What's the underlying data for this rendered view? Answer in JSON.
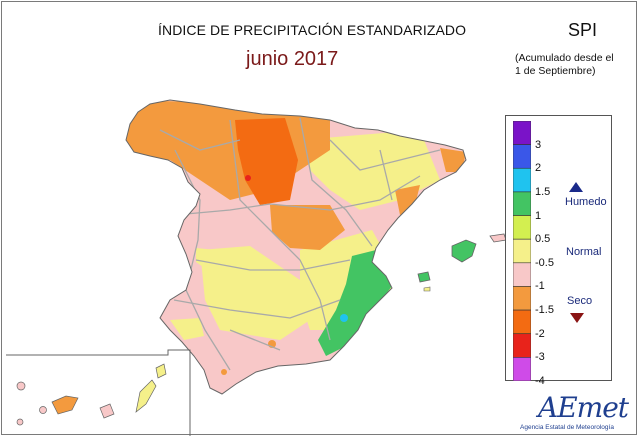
{
  "title": "ÍNDICE DE PRECIPITACIÓN ESTANDARIZADO",
  "subtitle": "junio 2017",
  "index_name": "SPI",
  "accumulation_note_line1": "(Acumulado desde el",
  "accumulation_note_line2": "1 de Septiembre)",
  "legend": {
    "ticks": [
      "3",
      "2",
      "1.5",
      "1",
      "0.5",
      "-0.5",
      "-1",
      "-1.5",
      "-2",
      "-3",
      "-4"
    ],
    "colors": [
      "#7a13c8",
      "#3a57e8",
      "#1fc3ef",
      "#43c463",
      "#d3ef50",
      "#f5f08a",
      "#f8c8c8",
      "#f39a3e",
      "#f36b12",
      "#e8231b",
      "#cf4be8"
    ],
    "side_labels": {
      "wet": "Humedo",
      "normal": "Normal",
      "dry": "Seco"
    },
    "marker_colors": {
      "wet": "#1a2a8a",
      "dry": "#8a1414"
    }
  },
  "logo": {
    "name": "AEmet",
    "caption": "Agencia Estatal de Meteorología"
  }
}
